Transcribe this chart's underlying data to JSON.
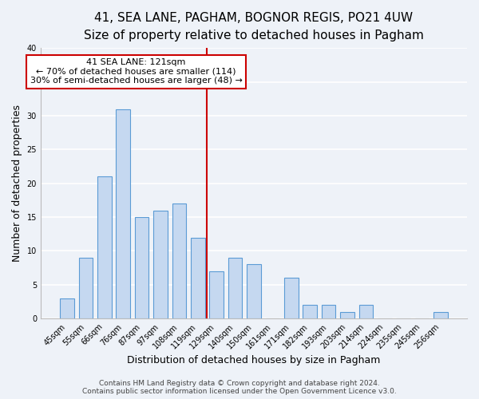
{
  "title": "41, SEA LANE, PAGHAM, BOGNOR REGIS, PO21 4UW",
  "subtitle": "Size of property relative to detached houses in Pagham",
  "xlabel": "Distribution of detached houses by size in Pagham",
  "ylabel": "Number of detached properties",
  "bar_labels": [
    "45sqm",
    "55sqm",
    "66sqm",
    "76sqm",
    "87sqm",
    "97sqm",
    "108sqm",
    "119sqm",
    "129sqm",
    "140sqm",
    "150sqm",
    "161sqm",
    "171sqm",
    "182sqm",
    "193sqm",
    "203sqm",
    "214sqm",
    "224sqm",
    "235sqm",
    "245sqm",
    "256sqm"
  ],
  "bar_values": [
    3,
    9,
    21,
    31,
    15,
    16,
    17,
    12,
    7,
    9,
    8,
    0,
    6,
    2,
    2,
    1,
    2,
    0,
    0,
    0,
    1
  ],
  "bar_color": "#c5d8f0",
  "bar_edge_color": "#5b9bd5",
  "vline_color": "#cc0000",
  "annotation_text": "41 SEA LANE: 121sqm\n← 70% of detached houses are smaller (114)\n30% of semi-detached houses are larger (48) →",
  "annotation_box_edge": "#cc0000",
  "annotation_box_face": "#ffffff",
  "ylim": [
    0,
    40
  ],
  "yticks": [
    0,
    5,
    10,
    15,
    20,
    25,
    30,
    35,
    40
  ],
  "footer_line1": "Contains HM Land Registry data © Crown copyright and database right 2024.",
  "footer_line2": "Contains public sector information licensed under the Open Government Licence v3.0.",
  "background_color": "#eef2f8",
  "grid_color": "#ffffff",
  "title_fontsize": 11,
  "label_fontsize": 9,
  "tick_fontsize": 7,
  "footer_fontsize": 6.5,
  "annotation_fontsize": 8
}
